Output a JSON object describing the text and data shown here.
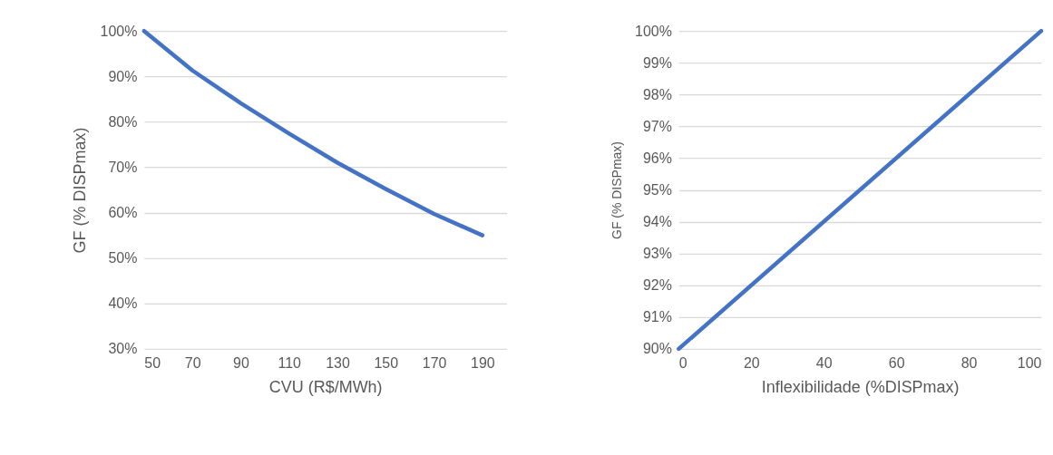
{
  "chart_data": [
    {
      "type": "line",
      "xlabel": "CVU (R$/MWh)",
      "ylabel": "GF (% DISPmax)",
      "x": [
        50,
        70,
        90,
        110,
        130,
        150,
        170,
        190
      ],
      "series": [
        {
          "color": "#4472c4",
          "values": [
            100,
            91.3,
            84.1,
            77.4,
            71,
            65.2,
            59.7,
            55
          ]
        }
      ],
      "xlim": [
        50,
        200
      ],
      "xticks": [
        50,
        70,
        90,
        110,
        130,
        150,
        170,
        190
      ],
      "ylim": [
        30,
        100
      ],
      "yticks": [
        {
          "value": 30,
          "label": "30%"
        },
        {
          "value": 40,
          "label": "40%"
        },
        {
          "value": 50,
          "label": "50%"
        },
        {
          "value": 60,
          "label": "60%"
        },
        {
          "value": 70,
          "label": "70%"
        },
        {
          "value": 80,
          "label": "80%"
        },
        {
          "value": 90,
          "label": "90%"
        },
        {
          "value": 100,
          "label": "100%"
        }
      ],
      "grid": "y"
    },
    {
      "type": "line",
      "xlabel": "Inflexibilidade (%DISPmax)",
      "ylabel": "GF (% DISPmax)",
      "x": [
        0,
        100
      ],
      "series": [
        {
          "color": "#4472c4",
          "values": [
            90,
            100
          ]
        }
      ],
      "xlim": [
        0,
        100
      ],
      "xticks": [
        0,
        20,
        40,
        60,
        80,
        100
      ],
      "ylim": [
        90,
        100
      ],
      "yticks": [
        {
          "value": 90,
          "label": "90%"
        },
        {
          "value": 91,
          "label": "91%"
        },
        {
          "value": 92,
          "label": "92%"
        },
        {
          "value": 93,
          "label": "93%"
        },
        {
          "value": 94,
          "label": "94%"
        },
        {
          "value": 95,
          "label": "95%"
        },
        {
          "value": 96,
          "label": "96%"
        },
        {
          "value": 97,
          "label": "97%"
        },
        {
          "value": 98,
          "label": "98%"
        },
        {
          "value": 99,
          "label": "99%"
        },
        {
          "value": 100,
          "label": "100%"
        }
      ],
      "grid": "y"
    }
  ]
}
